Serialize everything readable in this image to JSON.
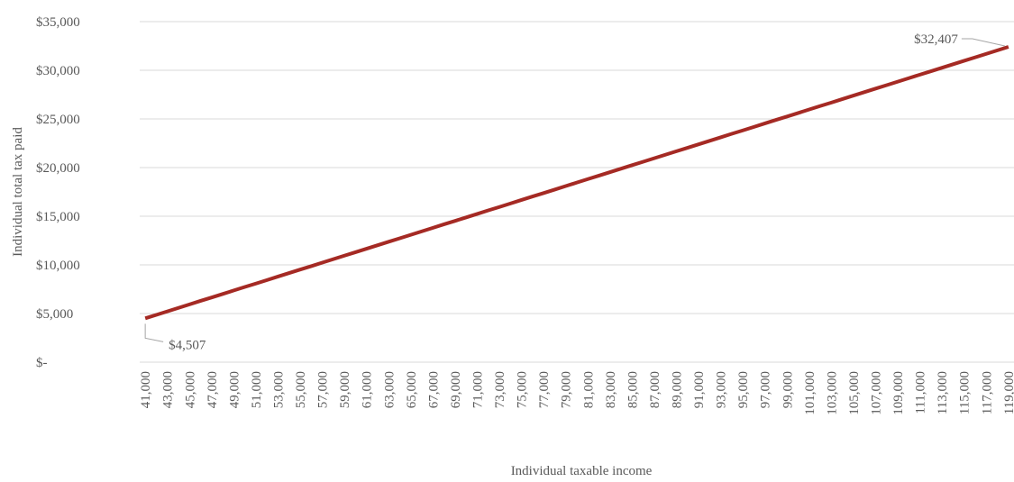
{
  "chart_data": {
    "type": "line",
    "x_label": "Individual taxable income",
    "y_label": "Individual total tax paid",
    "categories": [
      "41,000",
      null,
      "43,000",
      null,
      "45,000",
      null,
      "47,000",
      null,
      "49,000",
      null,
      "51,000",
      null,
      "53,000",
      null,
      "55,000",
      null,
      "57,000",
      null,
      "59,000",
      null,
      "61,000",
      null,
      "63,000",
      null,
      "65,000",
      null,
      "67,000",
      null,
      "69,000",
      null,
      "71,000",
      null,
      "73,000",
      null,
      "75,000",
      null,
      "77,000",
      null,
      "79,000",
      null,
      "81,000",
      null,
      "83,000",
      null,
      "85,000",
      null,
      "87,000",
      null,
      "89,000",
      null,
      "91,000",
      null,
      "93,000",
      null,
      "95,000",
      null,
      "97,000",
      null,
      "99,000",
      null,
      "101,000",
      null,
      "103,000",
      null,
      "105,000",
      null,
      "107,000",
      null,
      "109,000",
      null,
      "111,000",
      null,
      "113,000",
      null,
      "115,000",
      null,
      "117,000",
      null,
      "119,000"
    ],
    "series": [
      {
        "color": "#a52a24",
        "values": [
          4507,
          4860,
          5220,
          5580,
          5940,
          6300,
          6650,
          7010,
          7370,
          7730,
          8080,
          8440,
          8800,
          9160,
          9520,
          9870,
          10230,
          10590,
          10950,
          11300,
          11660,
          12020,
          12380,
          12730,
          13090,
          13450,
          13810,
          14170,
          14520,
          14880,
          15240,
          15600,
          15950,
          16310,
          16670,
          17030,
          17380,
          17740,
          18100,
          18460,
          18820,
          19170,
          19530,
          19890,
          20250,
          20600,
          20960,
          21320,
          21680,
          22030,
          22390,
          22750,
          23110,
          23470,
          23820,
          24180,
          24540,
          24900,
          25250,
          25610,
          25970,
          26330,
          26680,
          27040,
          27400,
          27760,
          28120,
          28470,
          28830,
          29190,
          29550,
          29900,
          30260,
          30620,
          30980,
          31330,
          31690,
          32050,
          32407
        ],
        "value_labels": [
          "$4,507",
          null,
          null,
          null,
          null,
          null,
          null,
          null,
          null,
          null,
          null,
          null,
          null,
          null,
          null,
          null,
          null,
          null,
          null,
          null,
          null,
          null,
          null,
          null,
          null,
          null,
          null,
          null,
          null,
          null,
          null,
          null,
          null,
          null,
          null,
          null,
          null,
          null,
          null,
          null,
          null,
          null,
          null,
          null,
          null,
          null,
          null,
          null,
          null,
          null,
          null,
          null,
          null,
          null,
          null,
          null,
          null,
          null,
          null,
          null,
          null,
          null,
          null,
          null,
          null,
          null,
          null,
          null,
          null,
          null,
          null,
          null,
          null,
          null,
          null,
          null,
          null,
          null,
          "$32,407"
        ]
      }
    ],
    "ylim": [
      0,
      35000
    ],
    "yticks": [
      {
        "value": 0,
        "label": "$-"
      },
      {
        "value": 5000,
        "label": "$5,000"
      },
      {
        "value": 10000,
        "label": "$10,000"
      },
      {
        "value": 15000,
        "label": "$15,000"
      },
      {
        "value": 20000,
        "label": "$20,000"
      },
      {
        "value": 25000,
        "label": "$25,000"
      },
      {
        "value": 30000,
        "label": "$30,000"
      },
      {
        "value": 35000,
        "label": "$35,000"
      }
    ],
    "grid": true
  }
}
